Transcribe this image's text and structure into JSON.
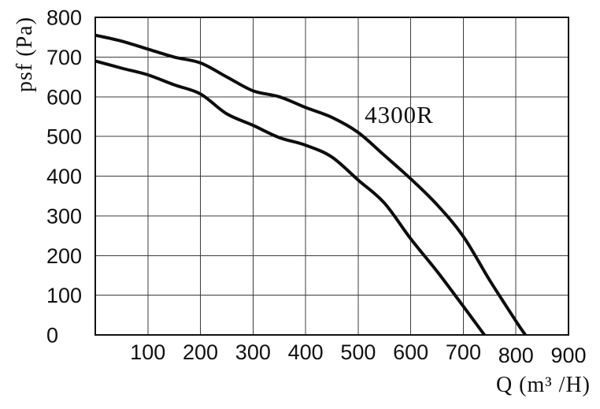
{
  "chart_data": {
    "type": "line",
    "title": "",
    "annotation": {
      "text": "4300R",
      "x": 578,
      "y": 554
    },
    "xlabel": "Q (m³ /H)",
    "ylabel": "psf (Pa)",
    "xlim": [
      0,
      900
    ],
    "ylim": [
      0,
      800
    ],
    "x_ticks": [
      100,
      200,
      300,
      400,
      500,
      600,
      700,
      800,
      900
    ],
    "x_tick_dy": [
      0,
      0,
      0,
      0,
      0,
      0,
      0,
      4,
      4
    ],
    "y_ticks": [
      0,
      100,
      200,
      300,
      400,
      500,
      600,
      700,
      800
    ],
    "grid": true,
    "legend": "none",
    "series": [
      {
        "name": "curve-4300R-upper",
        "points": [
          [
            0,
            755
          ],
          [
            50,
            740
          ],
          [
            100,
            720
          ],
          [
            150,
            700
          ],
          [
            200,
            685
          ],
          [
            250,
            650
          ],
          [
            300,
            615
          ],
          [
            350,
            600
          ],
          [
            400,
            573
          ],
          [
            450,
            548
          ],
          [
            500,
            510
          ],
          [
            550,
            452
          ],
          [
            600,
            393
          ],
          [
            650,
            328
          ],
          [
            700,
            248
          ],
          [
            750,
            138
          ],
          [
            800,
            35
          ],
          [
            818,
            0
          ]
        ]
      },
      {
        "name": "curve-4300R-lower",
        "points": [
          [
            0,
            690
          ],
          [
            50,
            672
          ],
          [
            100,
            655
          ],
          [
            150,
            630
          ],
          [
            200,
            607
          ],
          [
            250,
            557
          ],
          [
            300,
            528
          ],
          [
            350,
            497
          ],
          [
            400,
            478
          ],
          [
            450,
            448
          ],
          [
            500,
            390
          ],
          [
            550,
            332
          ],
          [
            600,
            242
          ],
          [
            650,
            160
          ],
          [
            700,
            72
          ],
          [
            740,
            0
          ]
        ]
      }
    ]
  },
  "colors": {
    "curve": "#0d0d0d",
    "grid": "#3c3c3c",
    "border": "#111111",
    "text": "#111111",
    "background": "#ffffff"
  }
}
